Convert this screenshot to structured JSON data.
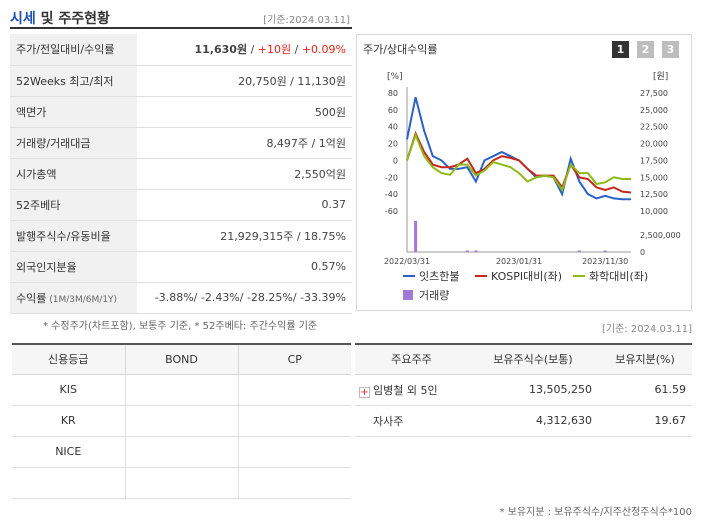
{
  "header": {
    "title_part1": "시세",
    "title_part2": " 및 주주현황",
    "date": "[기준:2024.03.11]"
  },
  "info_rows": [
    {
      "label": "주가/전일대비/수익률",
      "v1": "11,630원",
      "sep1": " / ",
      "v2": "+10원",
      "sep2": " / ",
      "v3": "+0.09%"
    },
    {
      "label": "52Weeks 최고/최저",
      "value": "20,750원 / 11,130원"
    },
    {
      "label": "액면가",
      "value": "500원"
    },
    {
      "label": "거래량/거래대금",
      "value": "8,497주 / 1억원"
    },
    {
      "label": "시가총액",
      "value": "2,550억원"
    },
    {
      "label": "52주베타",
      "value": "0.37"
    },
    {
      "label": "발행주식수/유동비율",
      "value": "21,929,315주 / 18.75%"
    },
    {
      "label": "외국인지분율",
      "value": "0.57%"
    },
    {
      "label": "수익률",
      "label_sub": " (1M/3M/6M/1Y)",
      "value": "-3.88%/ -2.43%/ -28.25%/ -33.39%"
    }
  ],
  "note1": "* 수정주가(차트포함), 보통주 기준, * 52주베타: 주간수익률 기준",
  "chart_panel": {
    "title": "주가/상대수익률",
    "pages": [
      "1",
      "2",
      "3"
    ]
  },
  "chart_data": {
    "type": "line",
    "left_unit": "[%]",
    "right_unit": "[원]",
    "left_ticks": [
      "80",
      "60",
      "40",
      "20",
      "0",
      "-20",
      "-40",
      "-60"
    ],
    "right_ticks": [
      "27,500",
      "25,000",
      "22,500",
      "20,000",
      "17,500",
      "15,000",
      "12,500",
      "10,000"
    ],
    "volume_tick": "2,500,000",
    "volume_zero": "0",
    "x_labels": [
      "2022/03/31",
      "2023/01/31",
      "2023/11/30"
    ],
    "ylim_left": [
      -60,
      80
    ],
    "series": [
      {
        "name": "잇츠한불",
        "color": "#2a62c9",
        "values": [
          25,
          75,
          35,
          5,
          0,
          -10,
          -10,
          -8,
          -25,
          0,
          5,
          10,
          5,
          0,
          -10,
          -20,
          -18,
          -20,
          -40,
          2,
          -25,
          -40,
          -45,
          -42,
          -45,
          -46,
          -46
        ]
      },
      {
        "name": "KOSPI대비(좌)",
        "color": "#c4281c",
        "values": [
          0,
          32,
          10,
          -5,
          -8,
          -8,
          -5,
          2,
          -15,
          -10,
          0,
          5,
          3,
          0,
          -10,
          -18,
          -18,
          -18,
          -32,
          -5,
          -20,
          -22,
          -32,
          -35,
          -32,
          -37,
          -38
        ]
      },
      {
        "name": "화학대비(좌)",
        "color": "#8dbb16",
        "values": [
          0,
          30,
          5,
          -8,
          -15,
          -17,
          -5,
          -5,
          -18,
          -12,
          -2,
          -5,
          -8,
          -15,
          -25,
          -20,
          -18,
          -20,
          -35,
          -5,
          -15,
          -15,
          -28,
          -26,
          -20,
          -22,
          -22
        ]
      }
    ],
    "volume": {
      "name": "거래량",
      "color": "#a07bd5",
      "values": [
        0,
        2750000,
        0,
        0,
        0,
        0,
        0,
        60000,
        80000,
        0,
        0,
        0,
        0,
        0,
        0,
        0,
        0,
        0,
        0,
        0,
        40000,
        0,
        0,
        40000,
        0,
        0,
        0
      ]
    }
  },
  "date2": "[기준: 2024.03.11]",
  "credit": {
    "headers": [
      "신용등급",
      "BOND",
      "CP"
    ],
    "rows": [
      [
        "KIS",
        "",
        ""
      ],
      [
        "KR",
        "",
        ""
      ],
      [
        "NICE",
        "",
        ""
      ],
      [
        "",
        "",
        ""
      ]
    ]
  },
  "shareholders": {
    "headers": [
      "주요주주",
      "보유주식수(보통)",
      "보유지분(%)"
    ],
    "rows": [
      {
        "name": "임병철 외 5인",
        "shares": "13,505,250",
        "pct": "61.59",
        "expand": "+"
      },
      {
        "name": "자사주",
        "shares": "4,312,630",
        "pct": "19.67",
        "expand": ""
      }
    ]
  },
  "note2": "* 보유지분 : 보유주식수/지주산정주식수*100"
}
